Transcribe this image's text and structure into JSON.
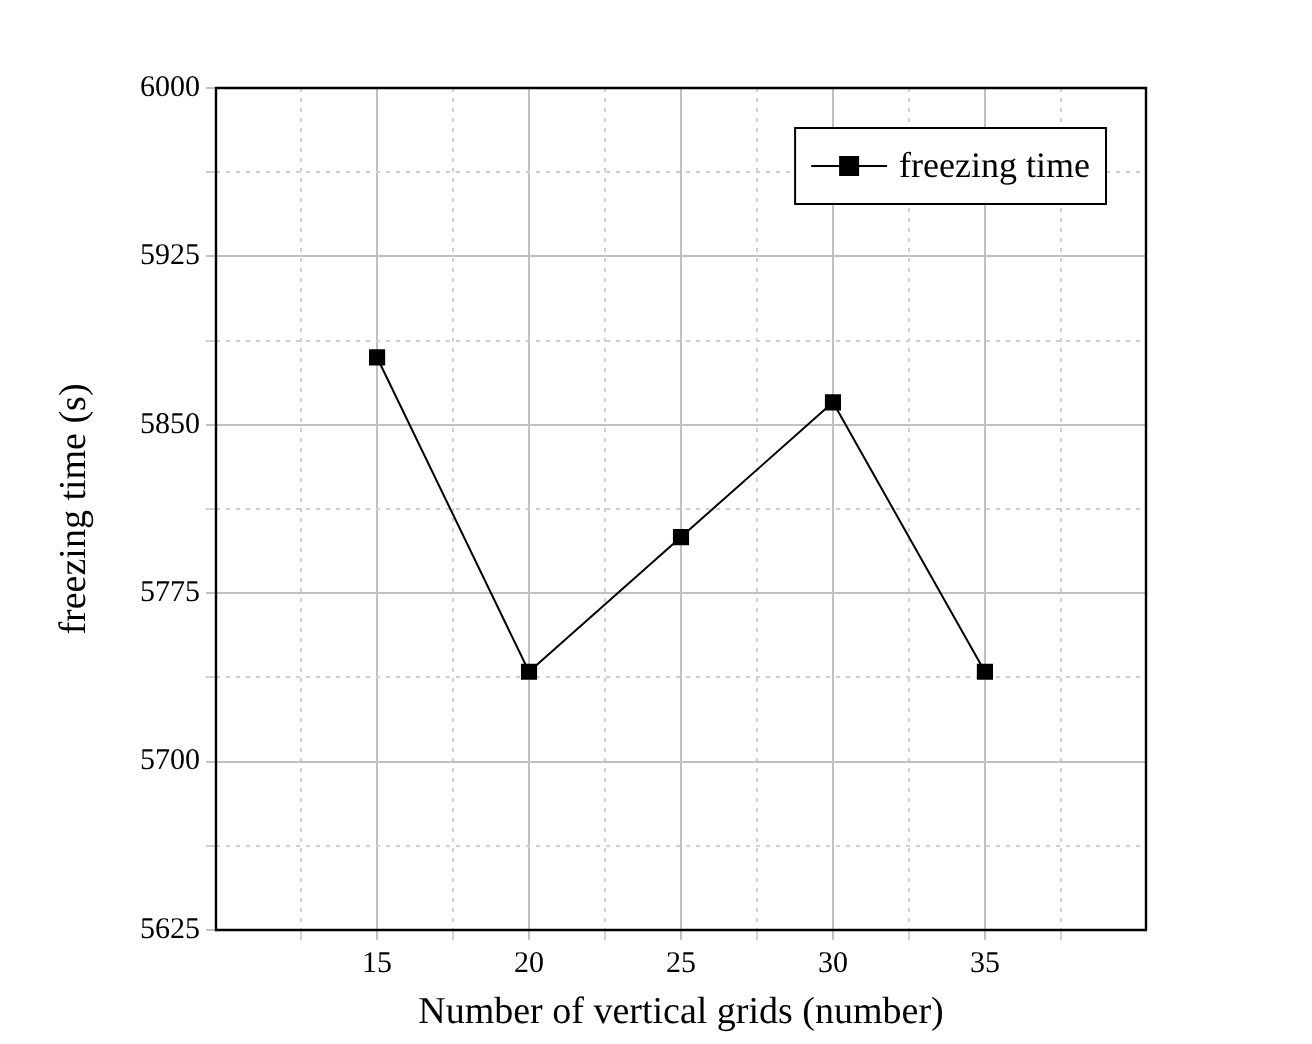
{
  "chart_data": {
    "type": "line",
    "xlabel": "Number of vertical grids (number)",
    "ylabel": "freezing time (s)",
    "x": [
      15,
      20,
      25,
      30,
      35
    ],
    "series": [
      {
        "name": "freezing time",
        "color": "#000000",
        "values": [
          5880,
          5740,
          5800,
          5860,
          5740
        ]
      }
    ],
    "xlim": [
      9.7,
      40.3
    ],
    "xticks": [
      {
        "value": 12.5,
        "label": null
      },
      15,
      {
        "value": 17.5,
        "label": null
      },
      20,
      {
        "value": 22.5,
        "label": null
      },
      25,
      {
        "value": 27.5,
        "label": null
      },
      30,
      {
        "value": 32.5,
        "label": null
      },
      35,
      {
        "value": 37.5,
        "label": null
      }
    ],
    "ylim": [
      5625,
      6000
    ],
    "yticks": [
      5625,
      {
        "value": 5662.5,
        "label": null
      },
      5700,
      {
        "value": 5737.5,
        "label": null
      },
      5775,
      {
        "value": 5812.5,
        "label": null
      },
      5850,
      {
        "value": 5887.5,
        "label": null
      },
      5925,
      {
        "value": 5962.5,
        "label": null
      },
      6000
    ],
    "grid": true,
    "legend": "top right",
    "marker": "square",
    "line_style": "solid"
  }
}
